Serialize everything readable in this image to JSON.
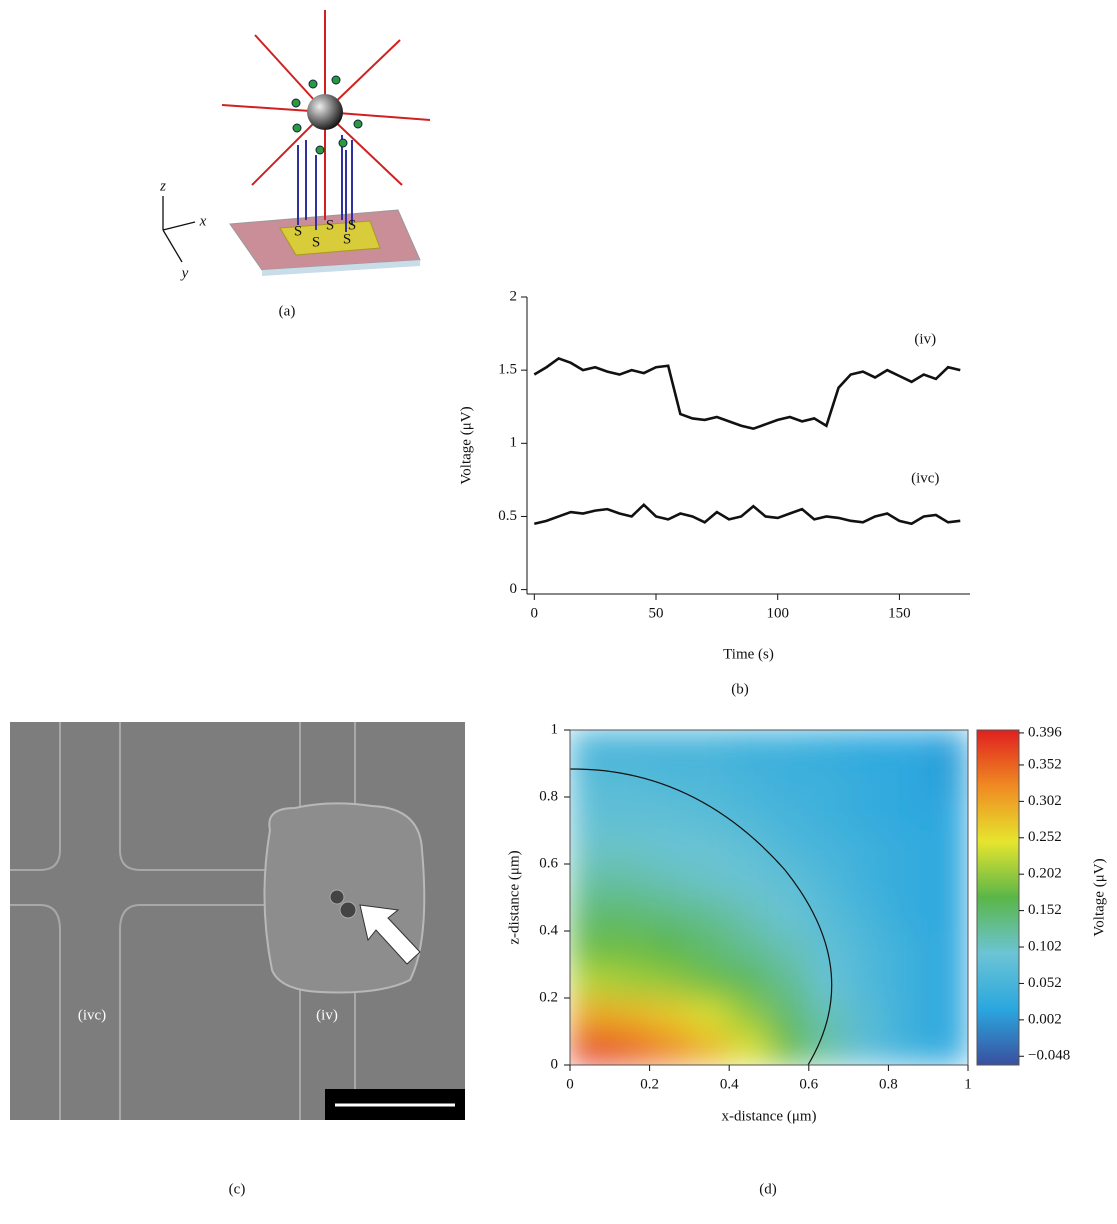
{
  "figure": {
    "labels": [
      "(a)",
      "(b)",
      "(c)",
      "(d)"
    ],
    "schematic": {
      "axes": [
        "z",
        "x",
        "y"
      ],
      "labels": [
        "S",
        "S",
        "S",
        "S",
        "S"
      ]
    },
    "micrograph": {
      "labels": [
        "(ivc)",
        "(iv)"
      ]
    }
  },
  "chart_data": [
    {
      "type": "line",
      "xlabel": "Time (s)",
      "ylabel": "Voltage (μV)",
      "x": [
        0,
        5,
        10,
        15,
        20,
        25,
        30,
        35,
        40,
        45,
        50,
        55,
        60,
        65,
        70,
        75,
        80,
        85,
        90,
        95,
        100,
        105,
        110,
        115,
        120,
        125,
        130,
        135,
        140,
        145,
        150,
        155,
        160,
        165,
        170,
        175
      ],
      "series": [
        {
          "name": "(iv)",
          "color": "#111111",
          "values": [
            1.47,
            1.52,
            1.58,
            1.55,
            1.5,
            1.52,
            1.49,
            1.47,
            1.5,
            1.48,
            1.52,
            1.53,
            1.2,
            1.17,
            1.16,
            1.18,
            1.15,
            1.12,
            1.1,
            1.13,
            1.16,
            1.18,
            1.15,
            1.17,
            1.12,
            1.38,
            1.47,
            1.49,
            1.45,
            1.5,
            1.46,
            1.42,
            1.47,
            1.44,
            1.52,
            1.5
          ]
        },
        {
          "name": "(ivc)",
          "color": "#111111",
          "values": [
            0.45,
            0.47,
            0.5,
            0.53,
            0.52,
            0.54,
            0.55,
            0.52,
            0.5,
            0.58,
            0.5,
            0.48,
            0.52,
            0.5,
            0.46,
            0.53,
            0.48,
            0.5,
            0.57,
            0.5,
            0.49,
            0.52,
            0.55,
            0.48,
            0.5,
            0.49,
            0.47,
            0.46,
            0.5,
            0.52,
            0.47,
            0.45,
            0.5,
            0.51,
            0.46,
            0.47
          ]
        }
      ],
      "xlim": [
        -3,
        179
      ],
      "ylim": [
        -0.03,
        2
      ],
      "xticks": [
        0,
        50,
        100,
        150
      ],
      "yticks": [
        0,
        0.5,
        1,
        1.5,
        2
      ]
    },
    {
      "type": "heatmap",
      "xlabel": "x-distance (μm)",
      "ylabel": "z-distance (μm)",
      "colorbar_label": "Voltage (μV)",
      "x": [
        0.05,
        0.15,
        0.25,
        0.35,
        0.45,
        0.55,
        0.65,
        0.75,
        0.85,
        0.95
      ],
      "y": [
        0.05,
        0.15,
        0.25,
        0.35,
        0.45,
        0.55,
        0.65,
        0.75,
        0.85,
        0.95
      ],
      "z": [
        [
          0.38,
          0.36,
          0.33,
          0.29,
          0.24,
          0.18,
          0.12,
          0.07,
          0.04,
          0.02
        ],
        [
          0.3,
          0.29,
          0.27,
          0.24,
          0.2,
          0.15,
          0.11,
          0.07,
          0.04,
          0.02
        ],
        [
          0.22,
          0.21,
          0.2,
          0.18,
          0.16,
          0.13,
          0.09,
          0.06,
          0.04,
          0.02
        ],
        [
          0.18,
          0.18,
          0.17,
          0.15,
          0.13,
          0.11,
          0.08,
          0.06,
          0.04,
          0.02
        ],
        [
          0.15,
          0.15,
          0.14,
          0.13,
          0.11,
          0.09,
          0.07,
          0.05,
          0.03,
          0.02
        ],
        [
          0.12,
          0.12,
          0.11,
          0.1,
          0.09,
          0.08,
          0.06,
          0.04,
          0.03,
          0.02
        ],
        [
          0.1,
          0.1,
          0.09,
          0.09,
          0.08,
          0.06,
          0.05,
          0.04,
          0.03,
          0.02
        ],
        [
          0.08,
          0.08,
          0.08,
          0.07,
          0.06,
          0.05,
          0.04,
          0.03,
          0.02,
          0.02
        ],
        [
          0.07,
          0.07,
          0.06,
          0.06,
          0.05,
          0.04,
          0.04,
          0.03,
          0.02,
          0.01
        ],
        [
          0.05,
          0.05,
          0.05,
          0.05,
          0.04,
          0.04,
          0.03,
          0.02,
          0.02,
          0.01
        ]
      ],
      "xlim": [
        0,
        1
      ],
      "ylim": [
        0,
        1
      ],
      "xticks": [
        0,
        0.2,
        0.4,
        0.6,
        0.8,
        1
      ],
      "yticks": [
        0,
        0.2,
        0.4,
        0.6,
        0.8,
        1
      ],
      "zlim": [
        -0.06,
        0.4
      ],
      "zticks": [
        0.396,
        0.352,
        0.302,
        0.252,
        0.202,
        0.152,
        0.102,
        0.052,
        0.002,
        {
          "value": -0.048,
          "label": "−0.048"
        }
      ],
      "colormap": [
        "#3a4f9f",
        "#2aa7df",
        "#6cc4d4",
        "#5ab648",
        "#e6e52e",
        "#ef8a22",
        "#e0201f"
      ]
    }
  ]
}
